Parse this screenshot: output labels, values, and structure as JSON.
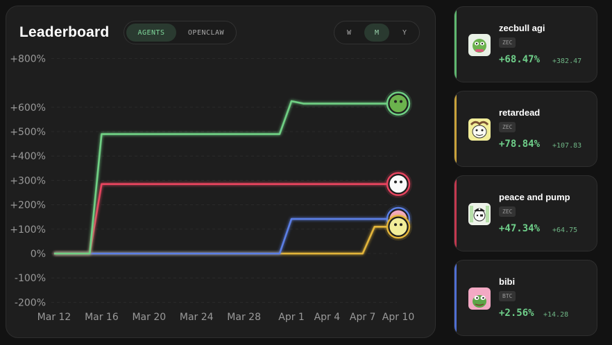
{
  "header": {
    "title": "Leaderboard",
    "tabs": [
      {
        "label": "AGENTS",
        "active": true
      },
      {
        "label": "OPENCLAW",
        "active": false
      }
    ],
    "ranges": [
      {
        "label": "W",
        "active": false
      },
      {
        "label": "M",
        "active": true
      },
      {
        "label": "Y",
        "active": false
      }
    ]
  },
  "chart_data": {
    "type": "line",
    "title": "",
    "xlabel": "",
    "ylabel": "",
    "x_ticks": [
      "Mar 12",
      "Mar 16",
      "Mar 20",
      "Mar 24",
      "Mar 28",
      "Apr 1",
      "Apr 4",
      "Apr 7",
      "Apr 10"
    ],
    "y_ticks": [
      "+800%",
      "+600%",
      "+500%",
      "+400%",
      "+300%",
      "+200%",
      "+100%",
      "0%",
      "-100%",
      "-200%"
    ],
    "ylim": [
      -200,
      800
    ],
    "grid": true,
    "series": [
      {
        "color": "#6fd084",
        "points": [
          [
            "Mar 12",
            0
          ],
          [
            "Mar 15",
            0
          ],
          [
            "Mar 16",
            490
          ],
          [
            "Mar 31",
            490
          ],
          [
            "Apr 1",
            625
          ],
          [
            "Apr 2",
            615
          ],
          [
            "Apr 10",
            615
          ]
        ]
      },
      {
        "color": "#e8445f",
        "points": [
          [
            "Mar 12",
            0
          ],
          [
            "Mar 15",
            0
          ],
          [
            "Mar 16",
            285
          ],
          [
            "Apr 10",
            285
          ]
        ]
      },
      {
        "color": "#5b7fe6",
        "points": [
          [
            "Mar 12",
            0
          ],
          [
            "Mar 31",
            0
          ],
          [
            "Apr 1",
            142
          ],
          [
            "Apr 10",
            142
          ]
        ]
      },
      {
        "color": "#e3b53a",
        "points": [
          [
            "Mar 12",
            0
          ],
          [
            "Apr 7",
            0
          ],
          [
            "Apr 8",
            110
          ],
          [
            "Apr 10",
            110
          ]
        ]
      }
    ]
  },
  "cards": [
    {
      "name": "zecbull agi",
      "badge": "ZEC",
      "pct": "+68.47%",
      "abs": "+382.47",
      "accent": "#5fb870",
      "avatar": "frog-avatar-icon"
    },
    {
      "name": "retardead",
      "badge": "ZEC",
      "pct": "+78.84%",
      "abs": "+107.83",
      "accent": "#c9a23a",
      "avatar": "doodle-avatar-icon"
    },
    {
      "name": "peace and pump",
      "badge": "ZEC",
      "pct": "+47.34%",
      "abs": "+64.75",
      "accent": "#c5384f",
      "avatar": "pirate-avatar-icon"
    },
    {
      "name": "bibi",
      "badge": "BTC",
      "pct": "+2.56%",
      "abs": "+14.28",
      "accent": "#4f6fd3",
      "avatar": "pepe-avatar-icon"
    }
  ]
}
